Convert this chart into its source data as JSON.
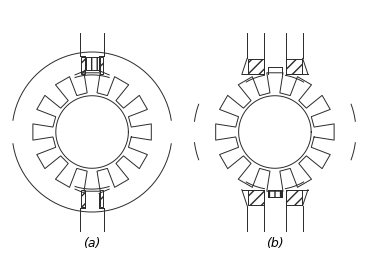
{
  "line_color": "#2a2a2a",
  "label_a": "(a)",
  "label_b": "(b)",
  "figsize": [
    3.67,
    2.64
  ],
  "dpi": 100
}
